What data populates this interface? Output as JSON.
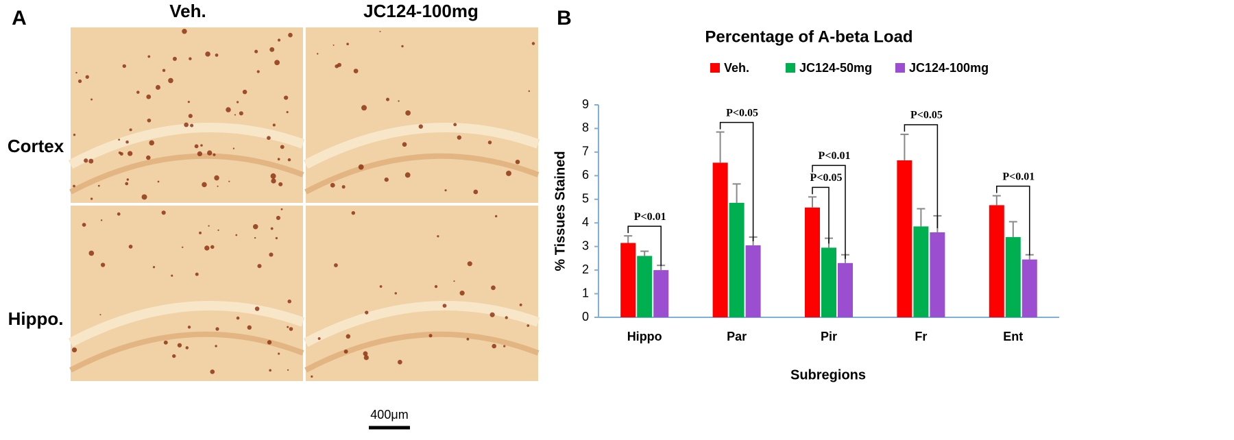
{
  "panel_a": {
    "label": "A",
    "columns": [
      "Veh.",
      "JC124-100mg"
    ],
    "rows": [
      "Cortex",
      "Hippo."
    ],
    "scale_bar": "400μm"
  },
  "chart_data": {
    "type": "bar",
    "label": "B",
    "title": "Percentage of A-beta Load",
    "x_label": "Subregions",
    "y_label": "% Tissues Stained",
    "categories": [
      "Hippo",
      "Par",
      "Pir",
      "Fr",
      "Ent"
    ],
    "series": [
      {
        "name": "Veh.",
        "color": "#ff0000",
        "values": [
          3.15,
          6.55,
          4.65,
          6.65,
          4.75
        ],
        "errors": [
          0.3,
          1.3,
          0.45,
          1.1,
          0.4
        ]
      },
      {
        "name": "JC124-50mg",
        "color": "#00b050",
        "values": [
          2.6,
          4.85,
          2.95,
          3.85,
          3.4
        ],
        "errors": [
          0.2,
          0.8,
          0.4,
          0.75,
          0.65
        ]
      },
      {
        "name": "JC124-100mg",
        "color": "#9b4fd0",
        "values": [
          2.0,
          3.05,
          2.3,
          3.6,
          2.45
        ],
        "errors": [
          0.2,
          0.35,
          0.35,
          0.7,
          0.2
        ]
      }
    ],
    "ylim": [
      0,
      9
    ],
    "yticks": [
      0,
      1,
      2,
      3,
      4,
      5,
      6,
      7,
      8,
      9
    ],
    "grid": false,
    "legend": "top",
    "annotations": [
      {
        "label": "P<0.01",
        "category": "Hippo",
        "between": [
          "Veh.",
          "JC124-100mg"
        ]
      },
      {
        "label": "P<0.05",
        "category": "Par",
        "between": [
          "Veh.",
          "JC124-100mg"
        ]
      },
      {
        "label": "P<0.05",
        "category": "Pir",
        "between": [
          "Veh.",
          "JC124-50mg"
        ]
      },
      {
        "label": "P<0.01",
        "category": "Pir",
        "between": [
          "Veh.",
          "JC124-100mg"
        ]
      },
      {
        "label": "P<0.05",
        "category": "Fr",
        "between": [
          "Veh.",
          "JC124-100mg"
        ]
      },
      {
        "label": "P<0.01",
        "category": "Ent",
        "between": [
          "Veh.",
          "JC124-100mg"
        ]
      }
    ]
  }
}
